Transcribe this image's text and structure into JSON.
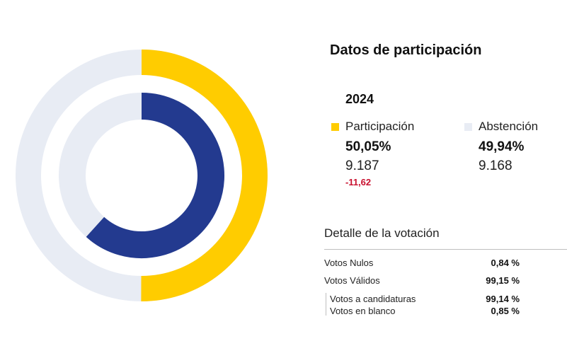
{
  "title": "Datos de participación",
  "year": "2024",
  "colors": {
    "participacion": "#FFCC00",
    "abstencion": "#E8ECF4",
    "inner_filled": "#233A8F",
    "inner_track": "#E8ECF4",
    "negative_change": "#C8102E"
  },
  "participacion": {
    "label": "Participación",
    "pct": "50,05%",
    "count": "9.187",
    "change": "-11,62"
  },
  "abstencion": {
    "label": "Abstención",
    "pct": "49,94%",
    "count": "9.168"
  },
  "detalle": {
    "title": "Detalle de la votación",
    "rows": [
      {
        "label": "Votos Nulos",
        "value": "0,84 %"
      },
      {
        "label": "Votos Válidos",
        "value": "99,15 %"
      },
      {
        "label": "Votos a candidaturas",
        "value": "99,14 %"
      },
      {
        "label": "Votos en blanco",
        "value": "0,85 %"
      }
    ]
  },
  "chart_data": {
    "type": "pie",
    "rings": [
      {
        "ring": "outer",
        "slices": [
          {
            "name": "Participación",
            "value": 50.05
          },
          {
            "name": "Abstención",
            "value": 49.94
          }
        ]
      },
      {
        "ring": "inner",
        "slices": [
          {
            "name": "",
            "value": 61.67
          },
          {
            "name": "",
            "value": 38.33
          }
        ]
      }
    ]
  }
}
